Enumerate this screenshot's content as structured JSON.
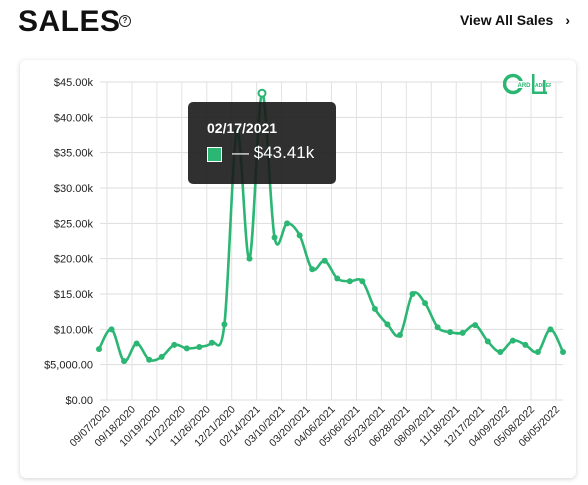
{
  "header": {
    "title": "SALES",
    "help_icon": "question-circle-icon",
    "view_all_label": "View All Sales",
    "view_all_icon": "chevron-right-icon"
  },
  "brand": {
    "logo_text": "CARDLADDER",
    "color": "#2bb673"
  },
  "tooltip": {
    "date": "02/17/2021",
    "value": "— $43.41k"
  },
  "chart_data": {
    "type": "line",
    "title": "",
    "xlabel": "",
    "ylabel": "",
    "ylim": [
      0,
      45000
    ],
    "yticks": [
      {
        "value": 0,
        "label": "$0.00"
      },
      {
        "value": 5000,
        "label": "$5,000.00"
      },
      {
        "value": 10000,
        "label": "$10.00k"
      },
      {
        "value": 15000,
        "label": "$15.00k"
      },
      {
        "value": 20000,
        "label": "$20.00k"
      },
      {
        "value": 25000,
        "label": "$25.00k"
      },
      {
        "value": 30000,
        "label": "$30.00k"
      },
      {
        "value": 35000,
        "label": "$35.00k"
      },
      {
        "value": 40000,
        "label": "$40.00k"
      },
      {
        "value": 45000,
        "label": "$45.00k"
      }
    ],
    "xticks": [
      "09/07/2020",
      "09/18/2020",
      "10/19/2020",
      "11/22/2020",
      "11/26/2020",
      "12/21/2020",
      "02/14/2021",
      "03/10/2021",
      "03/20/2021",
      "04/06/2021",
      "05/06/2021",
      "05/23/2021",
      "06/28/2021",
      "08/09/2021",
      "11/18/2021",
      "12/17/2021",
      "04/09/2022",
      "05/08/2022",
      "06/05/2022"
    ],
    "grid": true,
    "line_color": "#2bb673",
    "series": [
      {
        "values": [
          7200,
          10000,
          5500,
          8000,
          5700,
          6100,
          7800,
          7300,
          7500,
          8100,
          10700,
          38000,
          20000,
          43410,
          23000,
          25000,
          23300,
          18500,
          19700,
          17200,
          16800,
          16800,
          12900,
          10700,
          9200,
          15000,
          13700,
          10300,
          9600,
          9500,
          10600,
          8300,
          6800,
          8400,
          7800,
          6800,
          10000,
          6800
        ],
        "highlight_index": 13
      }
    ]
  }
}
